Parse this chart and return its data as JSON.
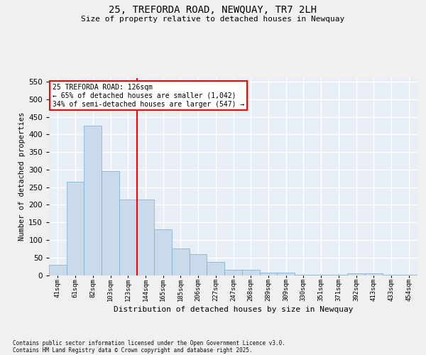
{
  "title": "25, TREFORDA ROAD, NEWQUAY, TR7 2LH",
  "subtitle": "Size of property relative to detached houses in Newquay",
  "xlabel": "Distribution of detached houses by size in Newquay",
  "ylabel": "Number of detached properties",
  "categories": [
    "41sqm",
    "61sqm",
    "82sqm",
    "103sqm",
    "123sqm",
    "144sqm",
    "165sqm",
    "185sqm",
    "206sqm",
    "227sqm",
    "247sqm",
    "268sqm",
    "289sqm",
    "309sqm",
    "330sqm",
    "351sqm",
    "371sqm",
    "392sqm",
    "413sqm",
    "433sqm",
    "454sqm"
  ],
  "values": [
    30,
    265,
    425,
    295,
    215,
    215,
    130,
    75,
    60,
    38,
    15,
    15,
    8,
    8,
    1,
    1,
    1,
    5,
    5,
    1,
    1
  ],
  "bar_color": "#c9daea",
  "bar_edge_color": "#7aaad0",
  "background_color": "#e8eef5",
  "grid_color": "#ffffff",
  "red_line_index": 4,
  "annotation_line1": "25 TREFORDA ROAD: 126sqm",
  "annotation_line2": "← 65% of detached houses are smaller (1,042)",
  "annotation_line3": "34% of semi-detached houses are larger (547) →",
  "ylim": [
    0,
    560
  ],
  "yticks": [
    0,
    50,
    100,
    150,
    200,
    250,
    300,
    350,
    400,
    450,
    500,
    550
  ],
  "footer_line1": "Contains HM Land Registry data © Crown copyright and database right 2025.",
  "footer_line2": "Contains public sector information licensed under the Open Government Licence v3.0.",
  "fig_width": 6.0,
  "fig_height": 5.0,
  "dpi": 100
}
